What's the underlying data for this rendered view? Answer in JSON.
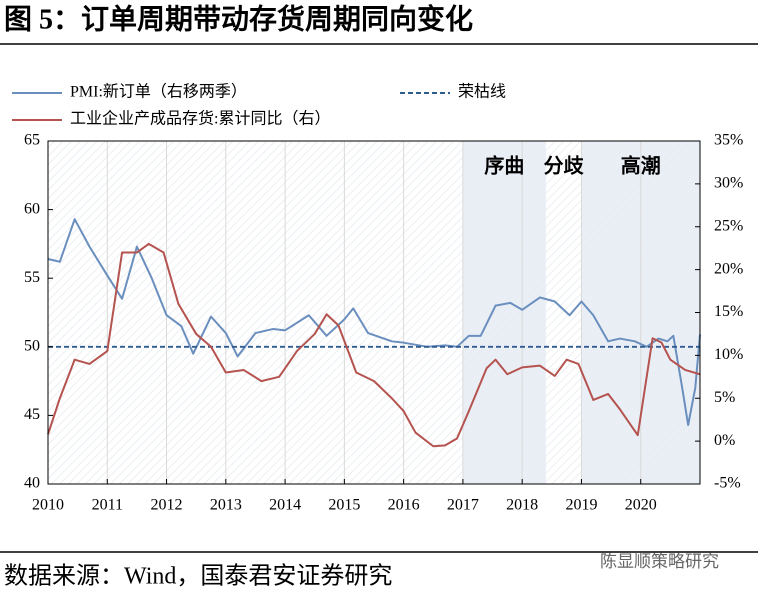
{
  "chart_data": {
    "type": "line",
    "title": "图 5：订单周期带动存货周期同向变化",
    "source": "数据来源：Wind，国泰君安证券研究",
    "watermark": "陈显顺策略研究",
    "xlim": [
      2010,
      2021
    ],
    "xticks": [
      2010,
      2011,
      2012,
      2013,
      2014,
      2015,
      2016,
      2017,
      2018,
      2019,
      2020
    ],
    "ylim": [
      40,
      65
    ],
    "yticks": [
      40,
      45,
      50,
      55,
      60,
      65
    ],
    "y2lim": [
      -5,
      35
    ],
    "y2ticks": [
      {
        "value": -5,
        "label": "-5%"
      },
      {
        "value": 0,
        "label": "0%"
      },
      {
        "value": 5,
        "label": "5%"
      },
      {
        "value": 10,
        "label": "10%"
      },
      {
        "value": 15,
        "label": "15%"
      },
      {
        "value": 20,
        "label": "20%"
      },
      {
        "value": 25,
        "label": "25%"
      },
      {
        "value": 30,
        "label": "30%"
      },
      {
        "value": 35,
        "label": "35%"
      }
    ],
    "phases": [
      {
        "start": 2017,
        "end": 2018.4,
        "label": "序曲",
        "shaded": true
      },
      {
        "start": 2018.4,
        "end": 2019,
        "label": "分歧",
        "shaded": false
      },
      {
        "start": 2019,
        "end": 2021,
        "label": "高潮",
        "shaded": true
      }
    ],
    "series": [
      {
        "name": "PMI:新订单（右移两季）",
        "color": "#6a8fbe",
        "dashed": false,
        "x": [
          2010,
          2010.2,
          2010.45,
          2010.7,
          2011,
          2011.25,
          2011.5,
          2011.75,
          2012,
          2012.25,
          2012.45,
          2012.75,
          2013,
          2013.2,
          2013.5,
          2013.8,
          2014,
          2014.4,
          2014.7,
          2015,
          2015.15,
          2015.4,
          2015.8,
          2016,
          2016.4,
          2016.7,
          2016.9,
          2017.1,
          2017.3,
          2017.55,
          2017.8,
          2018,
          2018.3,
          2018.55,
          2018.8,
          2019,
          2019.2,
          2019.45,
          2019.65,
          2019.9,
          2020.1,
          2020.3,
          2020.45,
          2020.55,
          2020.7,
          2020.8,
          2020.92,
          2021
        ],
        "values": [
          56.4,
          56.2,
          59.3,
          57.3,
          55.2,
          53.5,
          57.3,
          55,
          52.3,
          51.5,
          49.5,
          52.2,
          51,
          49.3,
          51,
          51.3,
          51.2,
          52.3,
          50.8,
          52,
          52.8,
          51,
          50.4,
          50.3,
          50,
          50.1,
          50,
          50.8,
          50.8,
          53,
          53.2,
          52.7,
          53.6,
          53.3,
          52.3,
          53.3,
          52.3,
          50.4,
          50.6,
          50.4,
          50,
          50.6,
          50.4,
          50.8,
          47,
          44.3,
          47,
          50.9
        ]
      },
      {
        "name": "荣枯线",
        "color": "#2f5b8f",
        "dashed": true,
        "x": [
          2010,
          2021
        ],
        "values": [
          50,
          50
        ]
      },
      {
        "name": "工业企业产成品存货:累计同比（右）",
        "color": "#b5534f",
        "dashed": false,
        "axis": "y2",
        "x": [
          2010,
          2010.2,
          2010.45,
          2010.7,
          2011,
          2011.25,
          2011.5,
          2011.7,
          2011.95,
          2012.2,
          2012.5,
          2012.75,
          2013,
          2013.3,
          2013.6,
          2013.9,
          2014.2,
          2014.5,
          2014.7,
          2014.9,
          2015.2,
          2015.5,
          2015.8,
          2016,
          2016.2,
          2016.5,
          2016.7,
          2016.9,
          2017.1,
          2017.4,
          2017.55,
          2017.75,
          2018,
          2018.3,
          2018.55,
          2018.75,
          2018.95,
          2019.2,
          2019.45,
          2019.65,
          2019.95,
          2020.2,
          2020.35,
          2020.5,
          2020.75,
          2021
        ],
        "values": [
          0.8,
          5,
          9.5,
          9,
          10.5,
          22,
          22,
          23,
          22,
          16,
          12.5,
          11,
          8,
          8.3,
          7,
          7.5,
          10.5,
          12.5,
          14.8,
          13.5,
          8,
          7,
          5,
          3.5,
          1,
          -0.6,
          -0.5,
          0.3,
          3.5,
          8.5,
          9.5,
          7.8,
          8.6,
          8.8,
          7.6,
          9.5,
          9,
          4.8,
          5.5,
          3.7,
          0.7,
          12,
          11.5,
          9.5,
          8.3,
          7.8
        ]
      }
    ]
  }
}
